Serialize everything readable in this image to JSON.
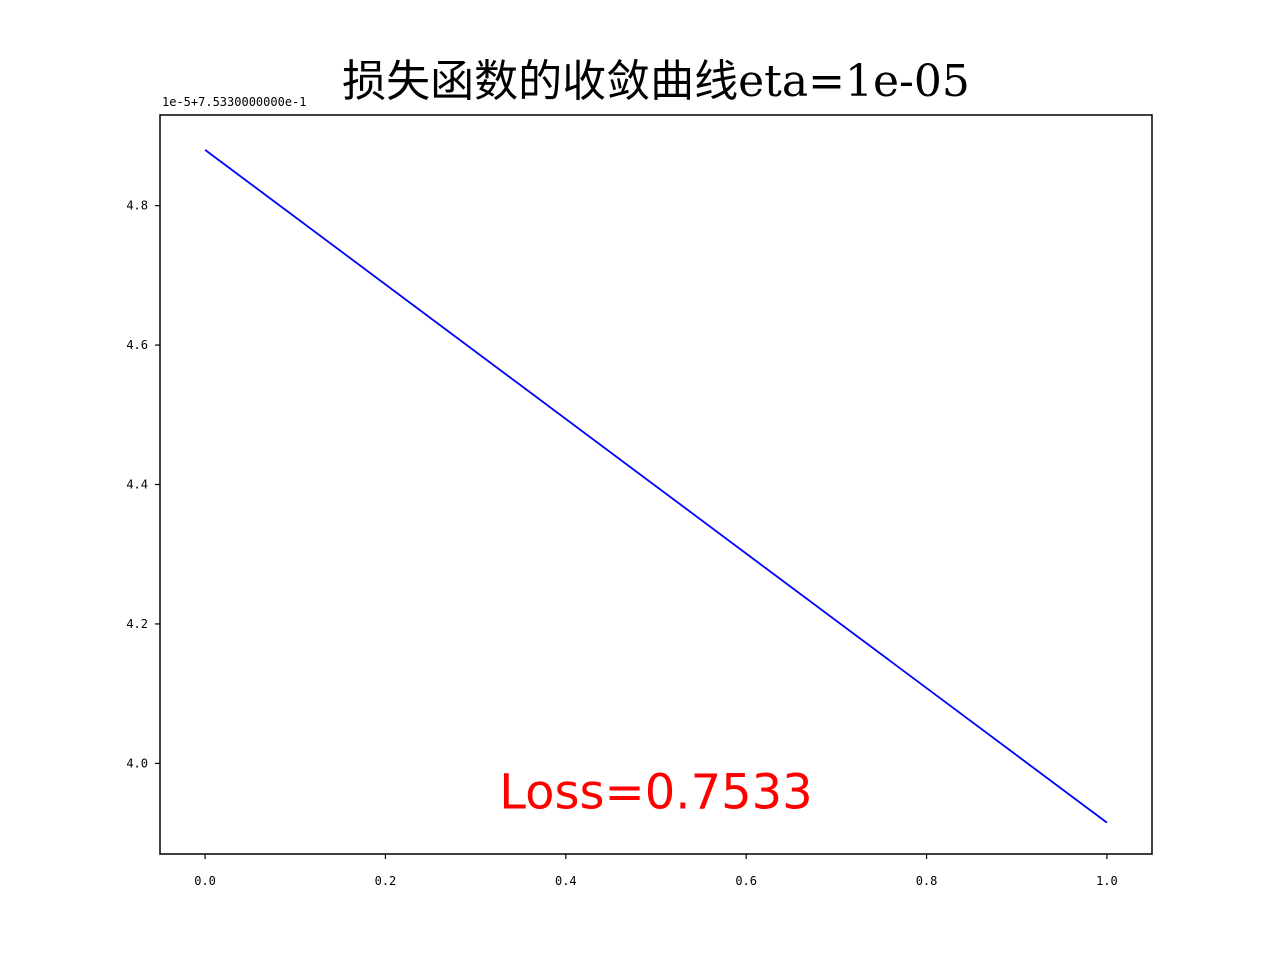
{
  "chart_data": {
    "type": "line",
    "title": "损失函数的收敛曲线eta=1e-05",
    "xlabel": "",
    "ylabel": "",
    "xlim": [
      -0.05,
      1.05
    ],
    "ylim": [
      3.87,
      4.93
    ],
    "x_ticks": [
      0.0,
      0.2,
      0.4,
      0.6,
      0.8,
      1.0
    ],
    "x_tick_labels": [
      "0.0",
      "0.2",
      "0.4",
      "0.6",
      "0.8",
      "1.0"
    ],
    "y_ticks": [
      4.0,
      4.2,
      4.4,
      4.6,
      4.8
    ],
    "y_tick_labels": [
      "4.0",
      "4.2",
      "4.4",
      "4.6",
      "4.8"
    ],
    "y_offset_text": "1e-5+7.5330000000e-1",
    "grid": false,
    "legend": false,
    "series": [
      {
        "color": "#0000ff",
        "x": [
          0.0,
          1.0
        ],
        "y": [
          4.88,
          3.915
        ]
      }
    ],
    "annotation": {
      "text": "Loss=0.7533",
      "color": "#ff0000",
      "x": 0.5,
      "y": 3.935
    }
  }
}
